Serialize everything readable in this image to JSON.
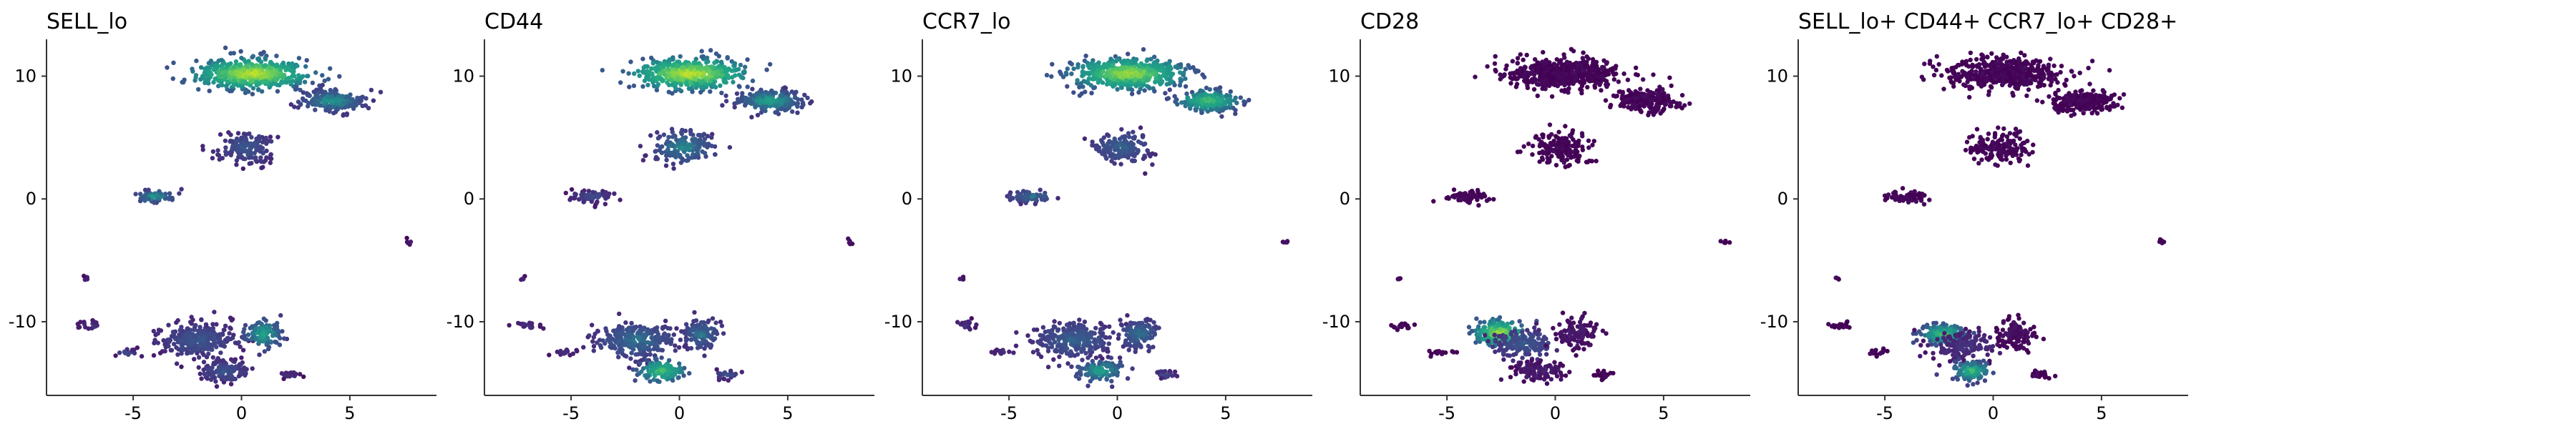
{
  "colors": {
    "low": "#440154",
    "mid": "#21918c",
    "high": "#fde725",
    "axis": "#333333"
  },
  "chart_data": [
    {
      "type": "scatter",
      "title": "SELL_lo",
      "xlim": [
        -9,
        9
      ],
      "ylim": [
        -16,
        13
      ],
      "xticks": [
        -5,
        0,
        5
      ],
      "yticks": [
        10,
        0,
        -10
      ],
      "xtick_labels": [
        "-5",
        "0",
        "5"
      ],
      "ytick_labels": [
        "10",
        "0",
        "-10"
      ],
      "colormap": "viridis",
      "clusters": [
        {
          "cx": 0.5,
          "cy": 10.2,
          "rx": 2.3,
          "ry": 1.1,
          "n": 520,
          "level": 0.95
        },
        {
          "cx": 4.2,
          "cy": 8.0,
          "rx": 1.3,
          "ry": 0.8,
          "n": 220,
          "level": 0.55
        },
        {
          "cx": 0.2,
          "cy": 4.2,
          "rx": 1.3,
          "ry": 1.2,
          "n": 160,
          "level": 0.35
        },
        {
          "cx": -4.0,
          "cy": 0.2,
          "rx": 0.9,
          "ry": 0.45,
          "n": 70,
          "level": 0.55
        },
        {
          "cx": -2.0,
          "cy": -11.5,
          "rx": 1.6,
          "ry": 1.3,
          "n": 280,
          "level": 0.35
        },
        {
          "cx": -0.8,
          "cy": -14.0,
          "rx": 1.0,
          "ry": 0.8,
          "n": 120,
          "level": 0.35
        },
        {
          "cx": 1.0,
          "cy": -11.0,
          "rx": 0.8,
          "ry": 1.1,
          "n": 110,
          "level": 0.6
        },
        {
          "cx": 2.2,
          "cy": -14.3,
          "rx": 0.5,
          "ry": 0.3,
          "n": 25,
          "level": 0.2
        },
        {
          "cx": -7.0,
          "cy": -10.3,
          "rx": 0.5,
          "ry": 0.3,
          "n": 18,
          "level": 0.2
        },
        {
          "cx": -5.3,
          "cy": -12.5,
          "rx": 0.5,
          "ry": 0.25,
          "n": 15,
          "level": 0.3
        },
        {
          "cx": -7.2,
          "cy": -6.5,
          "rx": 0.12,
          "ry": 0.15,
          "n": 4,
          "level": 0.15
        },
        {
          "cx": 7.8,
          "cy": -3.5,
          "rx": 0.15,
          "ry": 0.2,
          "n": 5,
          "level": 0.1
        }
      ]
    },
    {
      "type": "scatter",
      "title": "CD44",
      "xlim": [
        -9,
        9
      ],
      "ylim": [
        -16,
        13
      ],
      "xticks": [
        -5,
        0,
        5
      ],
      "yticks": [
        10,
        0,
        -10
      ],
      "xtick_labels": [
        "-5",
        "0",
        "5"
      ],
      "ytick_labels": [
        "10",
        "0",
        "-10"
      ],
      "colormap": "viridis",
      "clusters": [
        {
          "cx": 0.5,
          "cy": 10.2,
          "rx": 2.3,
          "ry": 1.1,
          "n": 520,
          "level": 0.95
        },
        {
          "cx": 4.2,
          "cy": 8.0,
          "rx": 1.3,
          "ry": 0.8,
          "n": 220,
          "level": 0.6
        },
        {
          "cx": 0.2,
          "cy": 4.2,
          "rx": 1.3,
          "ry": 1.2,
          "n": 160,
          "level": 0.5
        },
        {
          "cx": -4.0,
          "cy": 0.2,
          "rx": 0.9,
          "ry": 0.45,
          "n": 70,
          "level": 0.3
        },
        {
          "cx": -2.0,
          "cy": -11.5,
          "rx": 1.6,
          "ry": 1.3,
          "n": 280,
          "level": 0.45
        },
        {
          "cx": -0.8,
          "cy": -14.0,
          "rx": 1.0,
          "ry": 0.8,
          "n": 120,
          "level": 0.75
        },
        {
          "cx": 1.0,
          "cy": -11.0,
          "rx": 0.8,
          "ry": 1.1,
          "n": 110,
          "level": 0.45
        },
        {
          "cx": 2.2,
          "cy": -14.3,
          "rx": 0.5,
          "ry": 0.3,
          "n": 25,
          "level": 0.35
        },
        {
          "cx": -7.0,
          "cy": -10.3,
          "rx": 0.5,
          "ry": 0.3,
          "n": 18,
          "level": 0.2
        },
        {
          "cx": -5.3,
          "cy": -12.5,
          "rx": 0.5,
          "ry": 0.25,
          "n": 15,
          "level": 0.2
        },
        {
          "cx": -7.2,
          "cy": -6.5,
          "rx": 0.12,
          "ry": 0.15,
          "n": 4,
          "level": 0.15
        },
        {
          "cx": 7.8,
          "cy": -3.5,
          "rx": 0.15,
          "ry": 0.2,
          "n": 5,
          "level": 0.1
        }
      ]
    },
    {
      "type": "scatter",
      "title": "CCR7_lo",
      "xlim": [
        -9,
        9
      ],
      "ylim": [
        -16,
        13
      ],
      "xticks": [
        -5,
        0,
        5
      ],
      "yticks": [
        10,
        0,
        -10
      ],
      "xtick_labels": [
        "-5",
        "0",
        "5"
      ],
      "ytick_labels": [
        "10",
        "0",
        "-10"
      ],
      "colormap": "viridis",
      "clusters": [
        {
          "cx": 0.5,
          "cy": 10.2,
          "rx": 2.3,
          "ry": 1.1,
          "n": 520,
          "level": 0.9
        },
        {
          "cx": 4.2,
          "cy": 8.0,
          "rx": 1.3,
          "ry": 0.8,
          "n": 220,
          "level": 0.75
        },
        {
          "cx": 0.2,
          "cy": 4.2,
          "rx": 1.3,
          "ry": 1.2,
          "n": 160,
          "level": 0.4
        },
        {
          "cx": -4.0,
          "cy": 0.2,
          "rx": 0.9,
          "ry": 0.45,
          "n": 70,
          "level": 0.45
        },
        {
          "cx": -2.0,
          "cy": -11.5,
          "rx": 1.6,
          "ry": 1.3,
          "n": 280,
          "level": 0.4
        },
        {
          "cx": -0.8,
          "cy": -14.0,
          "rx": 1.0,
          "ry": 0.8,
          "n": 120,
          "level": 0.6
        },
        {
          "cx": 1.0,
          "cy": -11.0,
          "rx": 0.8,
          "ry": 1.1,
          "n": 110,
          "level": 0.45
        },
        {
          "cx": 2.2,
          "cy": -14.3,
          "rx": 0.5,
          "ry": 0.3,
          "n": 25,
          "level": 0.3
        },
        {
          "cx": -7.0,
          "cy": -10.3,
          "rx": 0.5,
          "ry": 0.3,
          "n": 18,
          "level": 0.2
        },
        {
          "cx": -5.3,
          "cy": -12.5,
          "rx": 0.5,
          "ry": 0.25,
          "n": 15,
          "level": 0.2
        },
        {
          "cx": -7.2,
          "cy": -6.5,
          "rx": 0.12,
          "ry": 0.15,
          "n": 4,
          "level": 0.15
        },
        {
          "cx": 7.8,
          "cy": -3.5,
          "rx": 0.15,
          "ry": 0.2,
          "n": 5,
          "level": 0.1
        }
      ]
    },
    {
      "type": "scatter",
      "title": "CD28",
      "xlim": [
        -9,
        9
      ],
      "ylim": [
        -16,
        13
      ],
      "xticks": [
        -5,
        0,
        5
      ],
      "yticks": [
        10,
        0,
        -10
      ],
      "xtick_labels": [
        "-5",
        "0",
        "5"
      ],
      "ytick_labels": [
        "10",
        "0",
        "-10"
      ],
      "colormap": "viridis",
      "clusters": [
        {
          "cx": 0.5,
          "cy": 10.2,
          "rx": 2.3,
          "ry": 1.1,
          "n": 520,
          "level": 0.02
        },
        {
          "cx": 4.2,
          "cy": 8.0,
          "rx": 1.3,
          "ry": 0.8,
          "n": 220,
          "level": 0.02
        },
        {
          "cx": 0.2,
          "cy": 4.2,
          "rx": 1.3,
          "ry": 1.2,
          "n": 160,
          "level": 0.02
        },
        {
          "cx": -4.0,
          "cy": 0.2,
          "rx": 0.9,
          "ry": 0.45,
          "n": 70,
          "level": 0.02
        },
        {
          "cx": -2.6,
          "cy": -10.9,
          "rx": 1.0,
          "ry": 0.9,
          "n": 200,
          "level": 0.9
        },
        {
          "cx": -1.5,
          "cy": -11.8,
          "rx": 1.4,
          "ry": 1.1,
          "n": 150,
          "level": 0.35
        },
        {
          "cx": -0.8,
          "cy": -14.0,
          "rx": 1.0,
          "ry": 0.8,
          "n": 120,
          "level": 0.12
        },
        {
          "cx": 1.0,
          "cy": -11.0,
          "rx": 0.8,
          "ry": 1.1,
          "n": 110,
          "level": 0.1
        },
        {
          "cx": 2.2,
          "cy": -14.3,
          "rx": 0.5,
          "ry": 0.3,
          "n": 25,
          "level": 0.02
        },
        {
          "cx": -7.0,
          "cy": -10.3,
          "rx": 0.5,
          "ry": 0.3,
          "n": 18,
          "level": 0.02
        },
        {
          "cx": -5.3,
          "cy": -12.5,
          "rx": 0.5,
          "ry": 0.25,
          "n": 15,
          "level": 0.02
        },
        {
          "cx": -7.2,
          "cy": -6.5,
          "rx": 0.12,
          "ry": 0.15,
          "n": 4,
          "level": 0.02
        },
        {
          "cx": 7.8,
          "cy": -3.5,
          "rx": 0.15,
          "ry": 0.2,
          "n": 5,
          "level": 0.02
        }
      ]
    },
    {
      "type": "scatter",
      "title": "SELL_lo+ CD44+ CCR7_lo+ CD28+",
      "xlim": [
        -9,
        9
      ],
      "ylim": [
        -16,
        13
      ],
      "xticks": [
        -5,
        0,
        5
      ],
      "yticks": [
        10,
        0,
        -10
      ],
      "xtick_labels": [
        "-5",
        "0",
        "5"
      ],
      "ytick_labels": [
        "10",
        "0",
        "-10"
      ],
      "colormap": "viridis",
      "clusters": [
        {
          "cx": 0.5,
          "cy": 10.2,
          "rx": 2.3,
          "ry": 1.1,
          "n": 520,
          "level": 0.02
        },
        {
          "cx": 4.2,
          "cy": 8.0,
          "rx": 1.3,
          "ry": 0.8,
          "n": 220,
          "level": 0.02
        },
        {
          "cx": 0.2,
          "cy": 4.2,
          "rx": 1.3,
          "ry": 1.2,
          "n": 160,
          "level": 0.02
        },
        {
          "cx": -4.0,
          "cy": 0.2,
          "rx": 0.9,
          "ry": 0.45,
          "n": 70,
          "level": 0.02
        },
        {
          "cx": -2.3,
          "cy": -11.0,
          "rx": 0.9,
          "ry": 0.7,
          "n": 170,
          "level": 0.75
        },
        {
          "cx": -1.3,
          "cy": -12.0,
          "rx": 1.5,
          "ry": 1.2,
          "n": 150,
          "level": 0.2
        },
        {
          "cx": -1.0,
          "cy": -14.0,
          "rx": 0.8,
          "ry": 0.7,
          "n": 130,
          "level": 0.7
        },
        {
          "cx": 1.0,
          "cy": -11.0,
          "rx": 0.8,
          "ry": 1.1,
          "n": 110,
          "level": 0.05
        },
        {
          "cx": 2.2,
          "cy": -14.3,
          "rx": 0.5,
          "ry": 0.3,
          "n": 25,
          "level": 0.02
        },
        {
          "cx": -7.0,
          "cy": -10.3,
          "rx": 0.5,
          "ry": 0.3,
          "n": 18,
          "level": 0.02
        },
        {
          "cx": -5.3,
          "cy": -12.5,
          "rx": 0.5,
          "ry": 0.25,
          "n": 15,
          "level": 0.02
        },
        {
          "cx": -7.2,
          "cy": -6.5,
          "rx": 0.12,
          "ry": 0.15,
          "n": 4,
          "level": 0.02
        },
        {
          "cx": 7.8,
          "cy": -3.5,
          "rx": 0.15,
          "ry": 0.2,
          "n": 5,
          "level": 0.02
        }
      ]
    }
  ]
}
